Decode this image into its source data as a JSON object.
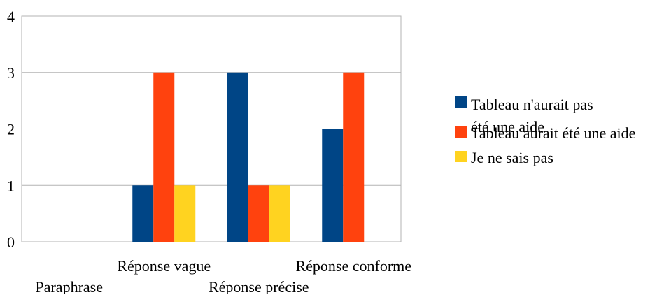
{
  "chart_data": {
    "type": "bar",
    "categories": [
      "Paraphrase",
      "Réponse vague",
      "Réponse précise",
      "Réponse conforme"
    ],
    "series": [
      {
        "name": "Tableau n'aurait pas été une aide",
        "values": [
          0,
          1,
          3,
          2
        ],
        "color": "#004586"
      },
      {
        "name": "Tableau aurait été une aide",
        "values": [
          0,
          3,
          1,
          3
        ],
        "color": "#ff420e"
      },
      {
        "name": "Je ne sais pas",
        "values": [
          0,
          1,
          1,
          0
        ],
        "color": "#ffd320"
      }
    ],
    "ylim": [
      0,
      4
    ],
    "yticks": [
      "0",
      "1",
      "2",
      "3",
      "4"
    ],
    "grid": true,
    "legend_position": "right"
  }
}
